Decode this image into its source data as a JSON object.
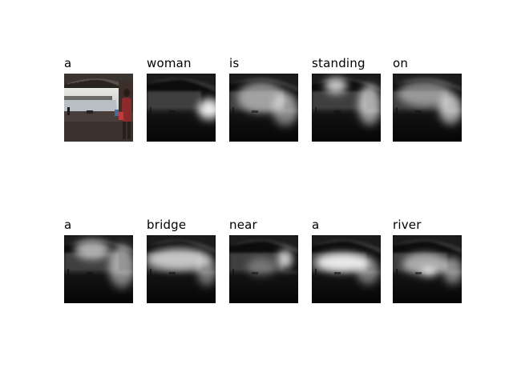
{
  "rows": [
    {
      "cells": [
        {
          "word": "a",
          "kind": "photo"
        },
        {
          "word": "woman",
          "kind": "attention",
          "focus": "right-middle"
        },
        {
          "word": "is",
          "kind": "attention",
          "focus": "center-wide"
        },
        {
          "word": "standing",
          "kind": "attention",
          "focus": "top-center"
        },
        {
          "word": "on",
          "kind": "attention",
          "focus": "right-wide"
        }
      ]
    },
    {
      "cells": [
        {
          "word": "a",
          "kind": "attention",
          "focus": "top-wide"
        },
        {
          "word": "bridge",
          "kind": "attention",
          "focus": "upper-band"
        },
        {
          "word": "near",
          "kind": "attention",
          "focus": "right-upper-small"
        },
        {
          "word": "a",
          "kind": "attention",
          "focus": "center-band-bright"
        },
        {
          "word": "river",
          "kind": "attention",
          "focus": "center-lower"
        }
      ]
    }
  ]
}
